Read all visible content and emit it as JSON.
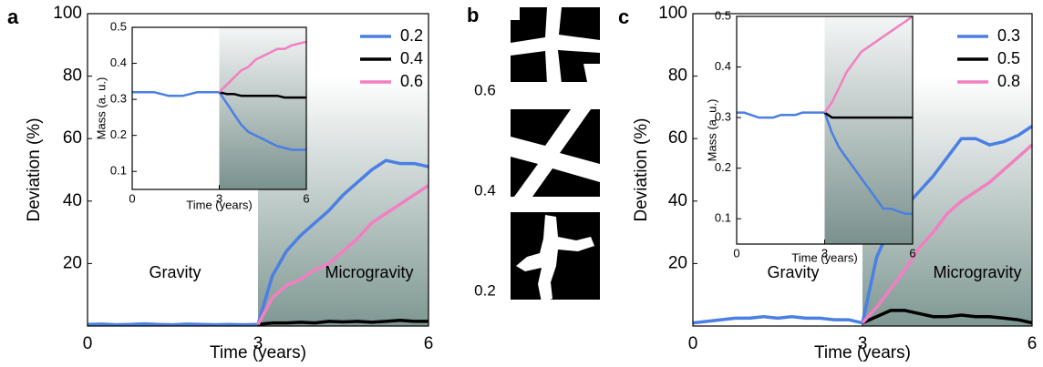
{
  "chart_data": [
    {
      "type": "line",
      "panel": "a",
      "xlabel": "Time (years)",
      "ylabel": "Deviation (%)",
      "x": [
        0,
        0.25,
        0.5,
        0.75,
        1,
        1.25,
        1.5,
        1.75,
        2,
        2.25,
        2.5,
        2.75,
        3,
        3.25,
        3.5,
        3.75,
        4,
        4.25,
        4.5,
        4.75,
        5,
        5.25,
        5.5,
        5.75,
        6
      ],
      "series": [
        {
          "name": "0.2",
          "color": "#4a7fe3",
          "values": [
            0.5,
            0.6,
            0.4,
            0.5,
            0.7,
            0.5,
            0.4,
            0.6,
            0.5,
            0.4,
            0.5,
            0.4,
            0.5,
            16,
            24,
            29,
            33,
            37,
            42,
            46,
            50,
            53,
            52,
            52,
            51
          ]
        },
        {
          "name": "0.4",
          "color": "#000000",
          "values": [
            null,
            null,
            null,
            null,
            null,
            null,
            null,
            null,
            null,
            null,
            null,
            null,
            0.5,
            1,
            1,
            1.2,
            1,
            1.5,
            1.3,
            1.5,
            1.2,
            1.5,
            1.8,
            1.5,
            1.5
          ]
        },
        {
          "name": "0.6",
          "color": "#f27fc0",
          "values": [
            null,
            null,
            null,
            null,
            null,
            null,
            null,
            null,
            null,
            null,
            null,
            null,
            0.5,
            9,
            13,
            15,
            18,
            20,
            24,
            28,
            33,
            36,
            39,
            42,
            45
          ]
        }
      ],
      "xlim": [
        0,
        6
      ],
      "ylim": [
        0,
        100
      ],
      "xticks": [
        0,
        3,
        6
      ],
      "yticks": [
        20,
        40,
        60,
        80,
        100
      ],
      "shaded_region": [
        3,
        6
      ],
      "legend": "upper right",
      "annotations": [
        "Gravity",
        "Microgravity"
      ]
    },
    {
      "type": "line",
      "xlabel": "Time (years)",
      "ylabel": "Mass (a. u.)",
      "x": [
        0,
        0.25,
        0.5,
        0.75,
        1,
        1.25,
        1.5,
        1.75,
        2,
        2.25,
        2.5,
        2.75,
        3,
        3.25,
        3.5,
        3.75,
        4,
        4.25,
        4.5,
        4.75,
        5,
        5.25,
        5.5,
        5.75,
        6
      ],
      "series": [
        {
          "color": "#4a7fe3",
          "values": [
            0.32,
            0.32,
            0.32,
            0.32,
            0.315,
            0.31,
            0.31,
            0.31,
            0.315,
            0.32,
            0.32,
            0.32,
            0.32,
            0.29,
            0.26,
            0.23,
            0.21,
            0.2,
            0.19,
            0.18,
            0.17,
            0.165,
            0.16,
            0.16,
            0.16
          ]
        },
        {
          "color": "#000000",
          "values": [
            null,
            null,
            null,
            null,
            null,
            null,
            null,
            null,
            null,
            null,
            null,
            null,
            0.32,
            0.315,
            0.315,
            0.31,
            0.31,
            0.31,
            0.31,
            0.31,
            0.31,
            0.305,
            0.305,
            0.305,
            0.305
          ]
        },
        {
          "color": "#f27fc0",
          "values": [
            null,
            null,
            null,
            null,
            null,
            null,
            null,
            null,
            null,
            null,
            null,
            null,
            0.32,
            0.34,
            0.36,
            0.38,
            0.39,
            0.41,
            0.42,
            0.43,
            0.44,
            0.44,
            0.45,
            0.455,
            0.46
          ]
        }
      ],
      "xlim": [
        0,
        6
      ],
      "ylim": [
        0.05,
        0.5
      ],
      "xticks": [
        0,
        3,
        6
      ],
      "yticks": [
        0.1,
        0.2,
        0.3,
        0.4,
        0.5
      ],
      "shaded_region": [
        3,
        6
      ]
    },
    {
      "type": "line",
      "panel": "c",
      "xlabel": "Time (years)",
      "ylabel": "Deviation (%)",
      "x": [
        0,
        0.25,
        0.5,
        0.75,
        1,
        1.25,
        1.5,
        1.75,
        2,
        2.25,
        2.5,
        2.75,
        3,
        3.25,
        3.5,
        3.75,
        4,
        4.25,
        4.5,
        4.75,
        5,
        5.25,
        5.5,
        5.75,
        6
      ],
      "series": [
        {
          "name": "0.3",
          "color": "#4a7fe3",
          "values": [
            1,
            1.5,
            2,
            2.5,
            2.5,
            3,
            2.5,
            3,
            2.5,
            2.5,
            2,
            2,
            1,
            22,
            32,
            38,
            43,
            48,
            54,
            60,
            60,
            58,
            59,
            61,
            64
          ]
        },
        {
          "name": "0.5",
          "color": "#000000",
          "values": [
            null,
            null,
            null,
            null,
            null,
            null,
            null,
            null,
            null,
            null,
            null,
            null,
            1,
            3,
            5,
            5,
            4,
            3,
            3,
            3.5,
            3,
            3,
            2.5,
            2,
            1
          ]
        },
        {
          "name": "0.8",
          "color": "#f27fc0",
          "values": [
            null,
            null,
            null,
            null,
            null,
            null,
            null,
            null,
            null,
            null,
            null,
            null,
            1,
            6,
            12,
            18,
            25,
            30,
            36,
            40,
            43,
            46,
            50,
            54,
            58
          ]
        }
      ],
      "xlim": [
        0,
        6
      ],
      "ylim": [
        0,
        100
      ],
      "xticks": [
        0,
        3,
        6
      ],
      "yticks": [
        20,
        40,
        60,
        80,
        100
      ],
      "shaded_region": [
        3,
        6
      ],
      "legend": "upper right",
      "annotations": [
        "Gravity",
        "Microgravity"
      ]
    },
    {
      "type": "line",
      "xlabel": "Time (years)",
      "ylabel": "Mass (a. u.)",
      "x": [
        0,
        0.25,
        0.5,
        0.75,
        1,
        1.25,
        1.5,
        1.75,
        2,
        2.25,
        2.5,
        2.75,
        3,
        3.25,
        3.5,
        3.75,
        4,
        4.25,
        4.5,
        4.75,
        5,
        5.25,
        5.5,
        5.75,
        6
      ],
      "series": [
        {
          "color": "#4a7fe3",
          "values": [
            0.31,
            0.31,
            0.305,
            0.3,
            0.3,
            0.3,
            0.305,
            0.305,
            0.305,
            0.31,
            0.31,
            0.31,
            0.31,
            0.27,
            0.24,
            0.22,
            0.2,
            0.18,
            0.16,
            0.14,
            0.12,
            0.12,
            0.115,
            0.11,
            0.11
          ]
        },
        {
          "color": "#000000",
          "values": [
            null,
            null,
            null,
            null,
            null,
            null,
            null,
            null,
            null,
            null,
            null,
            null,
            0.31,
            0.3,
            0.3,
            0.3,
            0.3,
            0.3,
            0.3,
            0.3,
            0.3,
            0.3,
            0.3,
            0.3,
            0.3
          ]
        },
        {
          "color": "#f27fc0",
          "values": [
            null,
            null,
            null,
            null,
            null,
            null,
            null,
            null,
            null,
            null,
            null,
            null,
            0.31,
            0.33,
            0.36,
            0.39,
            0.41,
            0.43,
            0.44,
            0.45,
            0.46,
            0.47,
            0.48,
            0.49,
            0.5
          ]
        }
      ],
      "xlim": [
        0,
        6
      ],
      "ylim": [
        0.05,
        0.5
      ],
      "xticks": [
        0,
        3,
        6
      ],
      "yticks": [
        0.1,
        0.2,
        0.3,
        0.4,
        0.5
      ],
      "shaded_region": [
        3,
        6
      ]
    }
  ],
  "panel_b": {
    "label": "b",
    "labels": [
      "0.6",
      "0.4",
      "0.2"
    ]
  }
}
